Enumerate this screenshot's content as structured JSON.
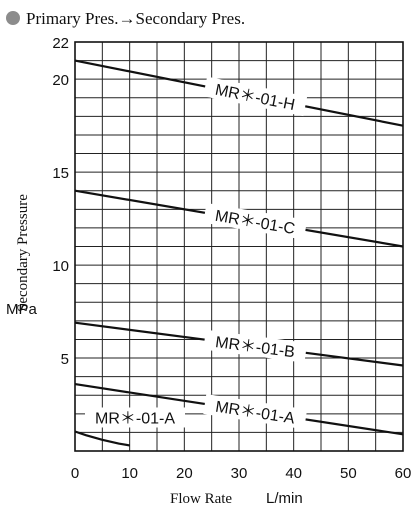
{
  "header": {
    "title": "Primary Pres.→Secondary Pres.",
    "bullet_color": "#8c8c8c"
  },
  "chart_data": {
    "type": "line",
    "ylabel": "Secondary Pressure",
    "yunit": "MPa",
    "xlabel": "Flow Rate",
    "xunit": "L/min",
    "xlim": [
      0,
      60
    ],
    "ylim": [
      0,
      22
    ],
    "xticks": [
      "0",
      "10",
      "20",
      "30",
      "40",
      "50",
      "60"
    ],
    "yticks": [
      "5",
      "10",
      "15",
      "20",
      "22"
    ],
    "grid": true,
    "series": [
      {
        "name": "MR＊-01-H",
        "x": [
          0,
          60
        ],
        "y": [
          21.0,
          17.5
        ]
      },
      {
        "name": "MR＊-01-C",
        "x": [
          0,
          60
        ],
        "y": [
          14.0,
          11.0
        ]
      },
      {
        "name": "MR＊-01-B",
        "x": [
          0,
          60
        ],
        "y": [
          6.9,
          4.6
        ]
      },
      {
        "name": "MR＊-01-A",
        "x": [
          0,
          60
        ],
        "y": [
          3.6,
          0.9
        ]
      },
      {
        "name": "MR＊-01-A",
        "x": [
          0,
          2,
          5,
          8,
          10
        ],
        "y": [
          1.05,
          0.85,
          0.6,
          0.4,
          0.3
        ]
      }
    ]
  }
}
